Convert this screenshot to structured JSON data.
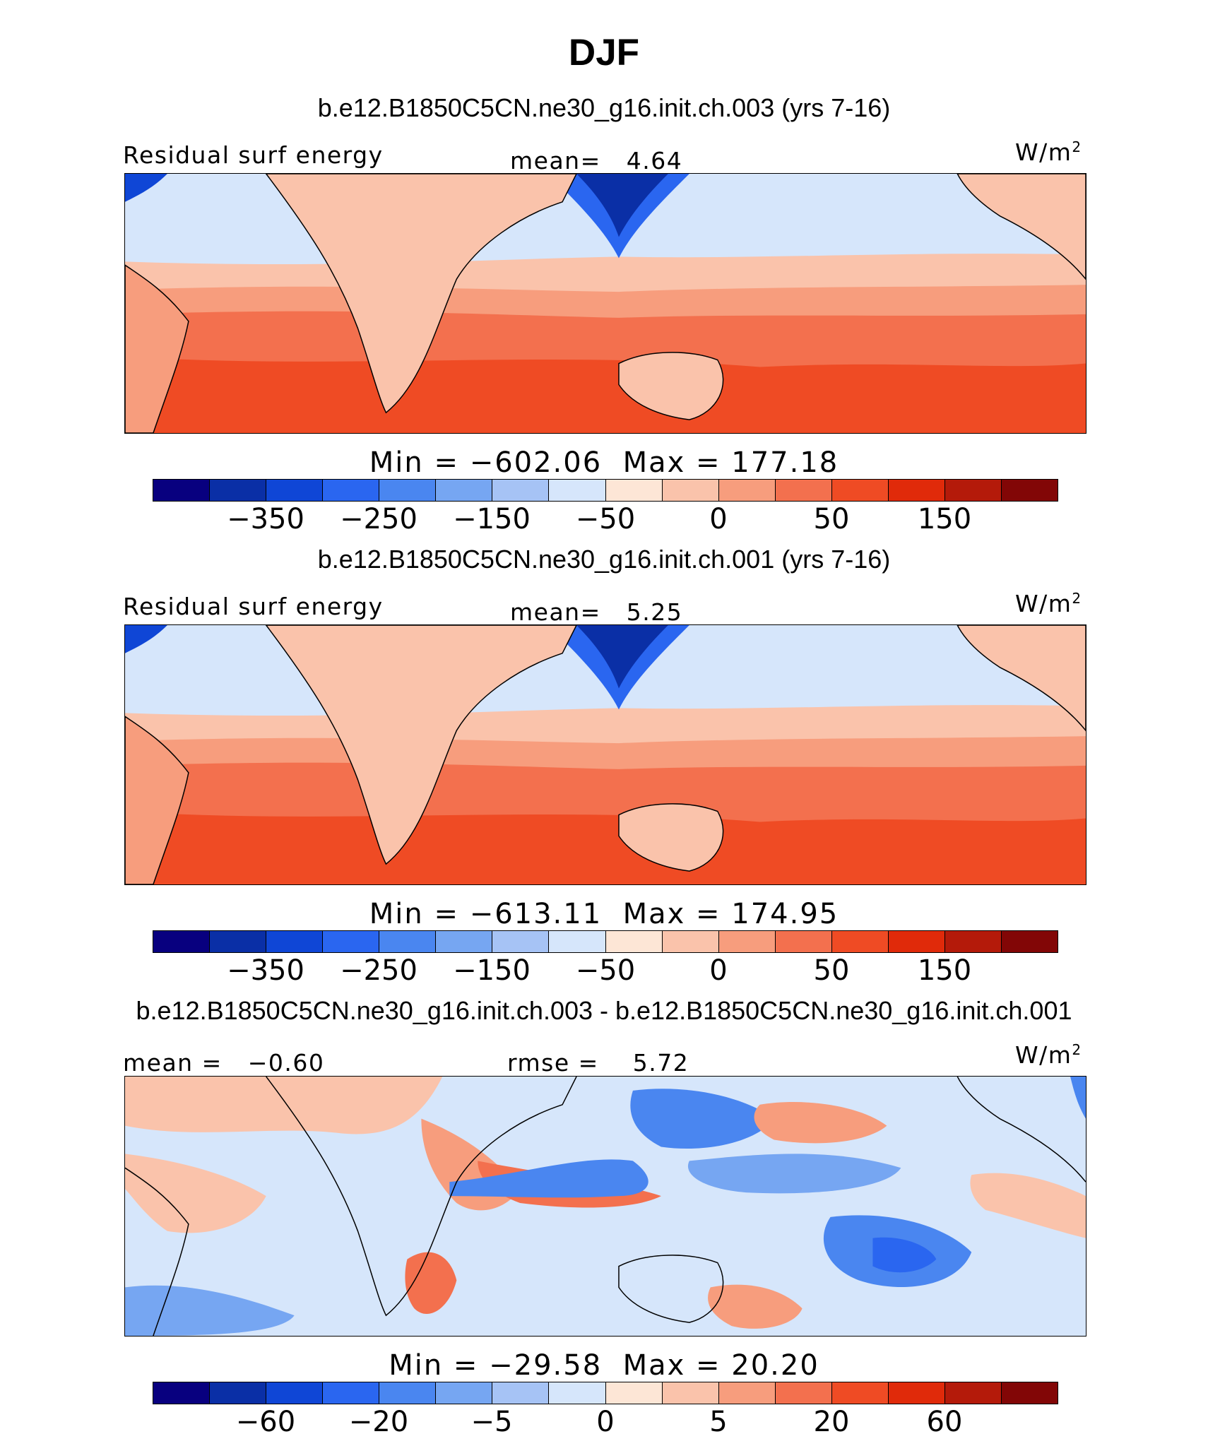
{
  "title": "DJF",
  "palette": [
    "#08007f",
    "#0a2fa6",
    "#0f46d6",
    "#2a66f0",
    "#4a86f0",
    "#76a6f2",
    "#a6c3f5",
    "#d6e6fb",
    "#fde6d6",
    "#fac3ab",
    "#f79d7d",
    "#f3704e",
    "#ef4b24",
    "#e02a0a",
    "#b41a0a",
    "#820606"
  ],
  "land_color": "#fbcbb2",
  "panels": [
    {
      "title": "b.e12.B1850C5CN.ne30_g16.init.ch.003 (yrs 7-16)",
      "variable": "Residual surf energy",
      "stat_label": "mean=",
      "stat_value": "4.64",
      "units": "W/m",
      "units_sup": "2",
      "min_label": "Min = ",
      "min_value": "−602.06",
      "max_label": "Max = ",
      "max_value": "177.18",
      "ticks": [
        "−350",
        "−250",
        "−150",
        "−50",
        "0",
        "50",
        "150"
      ]
    },
    {
      "title": "b.e12.B1850C5CN.ne30_g16.init.ch.001 (yrs 7-16)",
      "variable": "Residual surf energy",
      "stat_label": "mean=",
      "stat_value": "5.25",
      "units": "W/m",
      "units_sup": "2",
      "min_label": "Min = ",
      "min_value": "−613.11",
      "max_label": "Max = ",
      "max_value": "174.95",
      "ticks": [
        "−350",
        "−250",
        "−150",
        "−50",
        "0",
        "50",
        "150"
      ]
    },
    {
      "title": "b.e12.B1850C5CN.ne30_g16.init.ch.003 - b.e12.B1850C5CN.ne30_g16.init.ch.001",
      "stat1_label": "mean = ",
      "stat1_value": "−0.60",
      "stat_label": "rmse = ",
      "stat_value": "5.72",
      "units": "W/m",
      "units_sup": "2",
      "min_label": "Min = ",
      "min_value": "−29.58",
      "max_label": "Max = ",
      "max_value": "20.20",
      "ticks": [
        "−60",
        "−20",
        "−5",
        "0",
        "5",
        "20",
        "60"
      ]
    }
  ]
}
